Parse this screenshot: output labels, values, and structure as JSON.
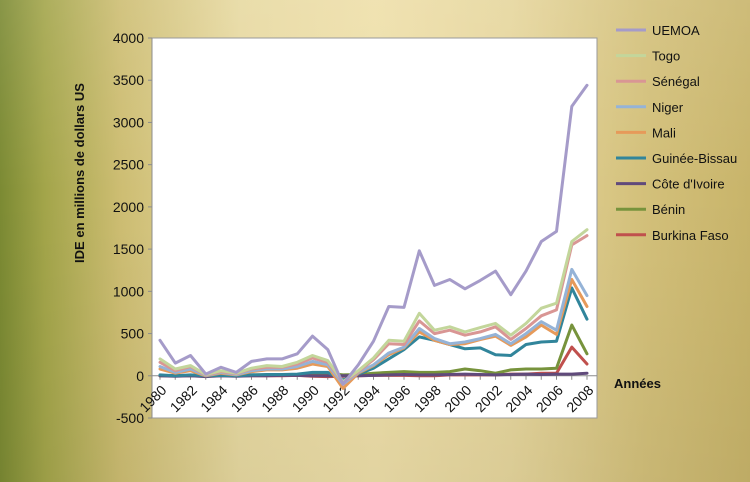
{
  "chart_data": {
    "type": "line",
    "ylabel": "IDE en millions de dollars US",
    "xlabel": "Années",
    "ylim": [
      -500,
      4000
    ],
    "yticks": [
      -500,
      0,
      500,
      1000,
      1500,
      2000,
      2500,
      3000,
      3500,
      4000
    ],
    "x": [
      1980,
      1981,
      1982,
      1983,
      1984,
      1985,
      1986,
      1987,
      1988,
      1989,
      1990,
      1991,
      1992,
      1993,
      1994,
      1995,
      1996,
      1997,
      1998,
      1999,
      2000,
      2001,
      2002,
      2003,
      2004,
      2005,
      2006,
      2007,
      2008
    ],
    "xtick_labels": [
      "1980",
      "1982",
      "1984",
      "1986",
      "1988",
      "1990",
      "1992",
      "1994",
      "1996",
      "1998",
      "2000",
      "2002",
      "2004",
      "2006",
      "2008"
    ],
    "grid": false,
    "legend_position": "right",
    "series": [
      {
        "name": "UEMOA",
        "color": "#a59bc9",
        "values": [
          420,
          150,
          240,
          20,
          100,
          40,
          170,
          200,
          200,
          260,
          470,
          310,
          -100,
          130,
          410,
          820,
          810,
          1480,
          1070,
          1140,
          1030,
          1130,
          1240,
          960,
          1240,
          1590,
          1710,
          3190,
          3440
        ]
      },
      {
        "name": "Togo",
        "color": "#c3d69b",
        "values": [
          200,
          80,
          120,
          15,
          60,
          30,
          90,
          120,
          110,
          160,
          240,
          180,
          -70,
          60,
          210,
          420,
          410,
          740,
          540,
          580,
          520,
          570,
          620,
          480,
          620,
          800,
          860,
          1590,
          1730
        ]
      },
      {
        "name": "Sénégal",
        "color": "#d99694",
        "values": [
          160,
          60,
          110,
          10,
          50,
          25,
          80,
          100,
          100,
          140,
          210,
          160,
          -80,
          50,
          190,
          380,
          370,
          650,
          500,
          540,
          480,
          520,
          580,
          430,
          560,
          710,
          780,
          1550,
          1660
        ]
      },
      {
        "name": "Niger",
        "color": "#95b3d7",
        "values": [
          110,
          40,
          80,
          5,
          40,
          15,
          60,
          80,
          80,
          110,
          170,
          130,
          -100,
          40,
          130,
          270,
          340,
          560,
          440,
          380,
          400,
          440,
          490,
          380,
          500,
          640,
          540,
          1260,
          950
        ]
      },
      {
        "name": "Mali",
        "color": "#e69a5a",
        "values": [
          80,
          30,
          60,
          0,
          30,
          10,
          50,
          70,
          70,
          90,
          140,
          110,
          -150,
          30,
          120,
          250,
          330,
          520,
          420,
          370,
          380,
          430,
          470,
          360,
          460,
          600,
          490,
          1140,
          820
        ]
      },
      {
        "name": "Guinée-Bissau",
        "color": "#31859b",
        "values": [
          10,
          0,
          10,
          0,
          5,
          0,
          10,
          15,
          15,
          20,
          40,
          40,
          -50,
          20,
          90,
          200,
          310,
          460,
          420,
          370,
          320,
          330,
          250,
          240,
          370,
          400,
          410,
          1040,
          670
        ]
      },
      {
        "name": "Côte d'Ivoire",
        "color": "#604a7b",
        "values": [
          0,
          -5,
          0,
          -10,
          0,
          -5,
          0,
          0,
          5,
          5,
          0,
          0,
          0,
          0,
          5,
          10,
          15,
          10,
          10,
          15,
          20,
          15,
          10,
          15,
          20,
          15,
          20,
          20,
          30
        ]
      },
      {
        "name": "Bénin",
        "color": "#77933c",
        "values": [
          0,
          5,
          0,
          5,
          5,
          5,
          10,
          10,
          10,
          15,
          20,
          30,
          10,
          15,
          30,
          40,
          50,
          40,
          40,
          50,
          80,
          60,
          30,
          70,
          80,
          80,
          90,
          600,
          260
        ]
      },
      {
        "name": "Burkina Faso",
        "color": "#c0504d",
        "values": [
          0,
          0,
          0,
          0,
          0,
          0,
          0,
          0,
          0,
          5,
          -5,
          -10,
          -5,
          0,
          5,
          5,
          5,
          0,
          0,
          10,
          10,
          10,
          10,
          20,
          20,
          30,
          30,
          340,
          140
        ]
      }
    ]
  }
}
